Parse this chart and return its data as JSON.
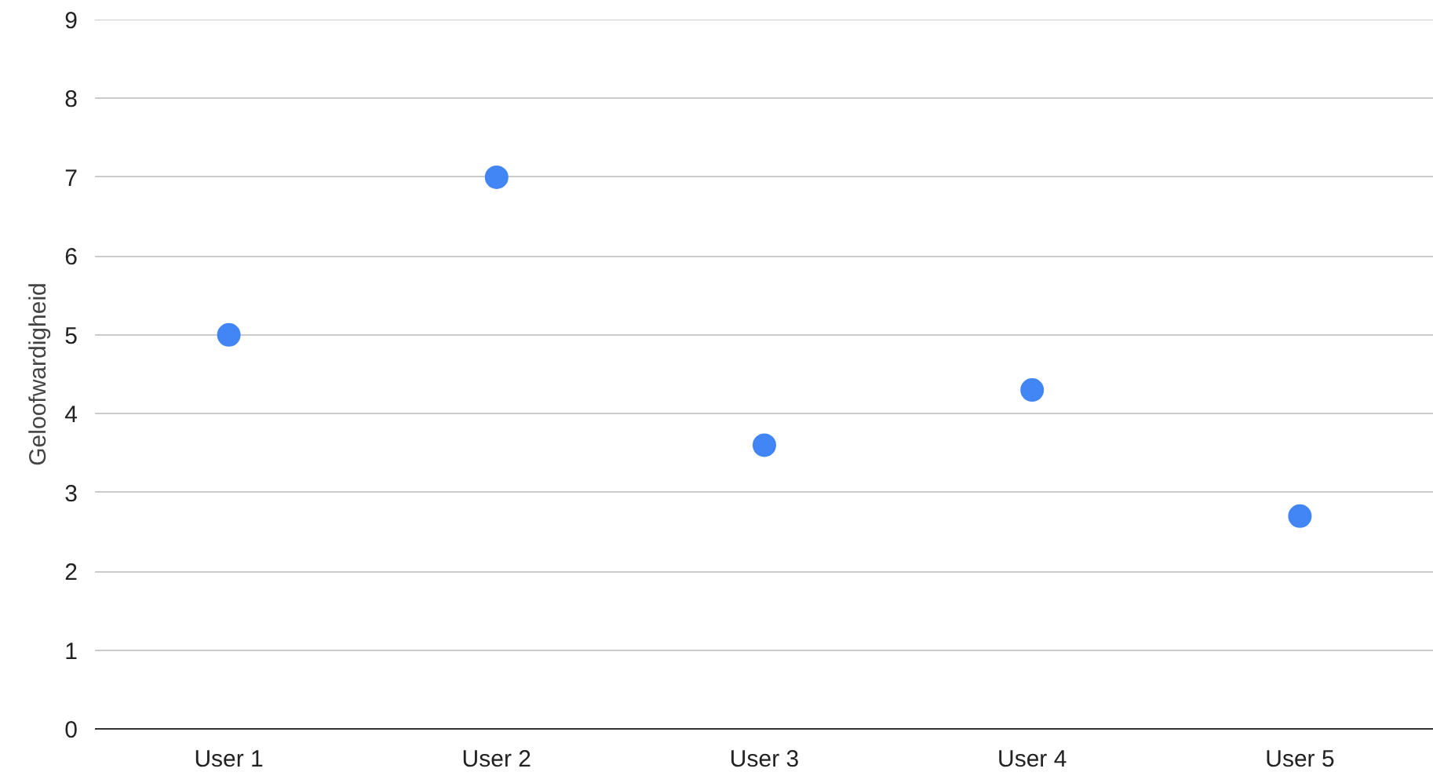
{
  "chart_data": {
    "type": "scatter",
    "ylabel": "Geloofwardigheid",
    "categories": [
      "User 1",
      "User 2",
      "User 3",
      "User 4",
      "User 5"
    ],
    "series": [
      {
        "color": "#4285f4",
        "values": [
          5,
          7,
          3.6,
          4.3,
          2.7
        ]
      }
    ],
    "ylim": [
      0,
      9
    ],
    "yticks": [
      0,
      1,
      2,
      3,
      4,
      5,
      6,
      7,
      8,
      9
    ],
    "grid": "y",
    "marker": "circle"
  }
}
